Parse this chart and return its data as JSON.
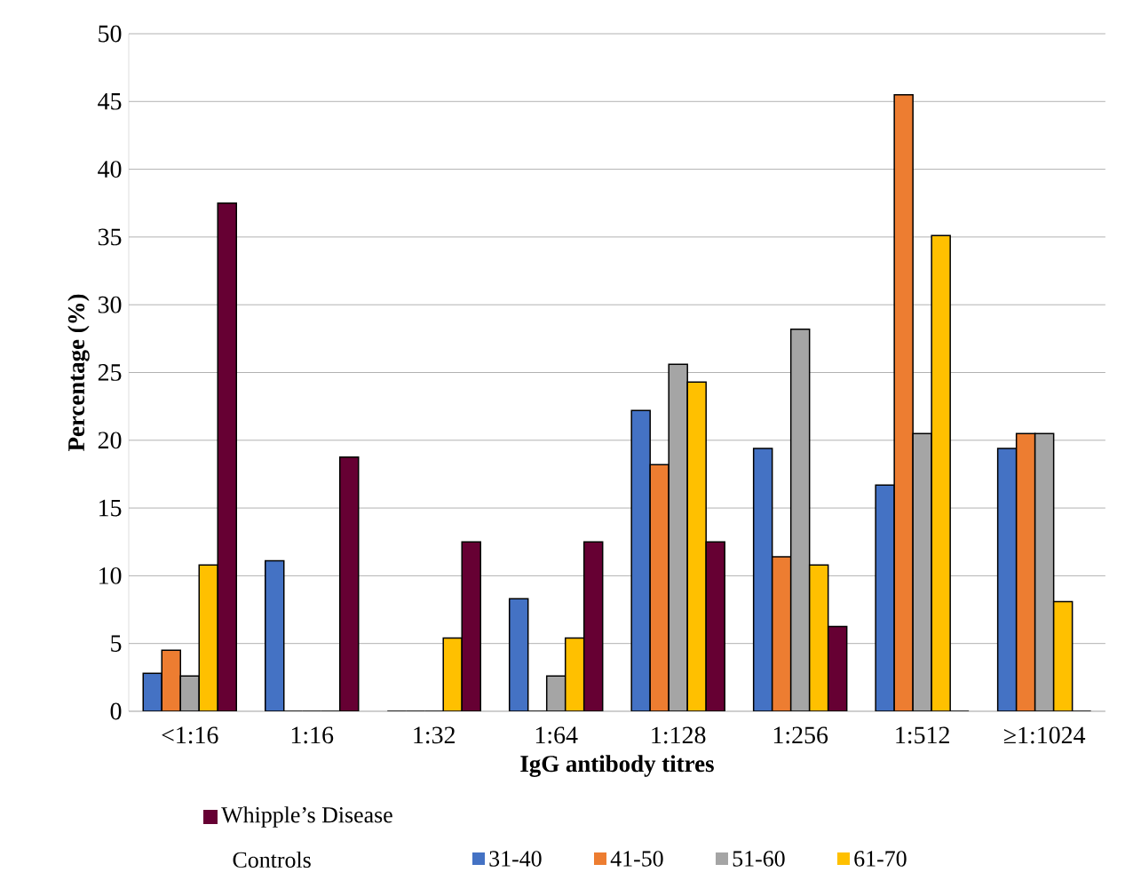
{
  "chart_data": {
    "type": "bar",
    "xlabel": "IgG antibody titres",
    "ylabel": "Percentage (%)",
    "categories": [
      "<1:16",
      "1:16",
      "1:32",
      "1:64",
      "1:128",
      "1:256",
      "1:512",
      "≥1:1024"
    ],
    "series": [
      {
        "name": "31-40",
        "color": "#4472c4",
        "values": [
          2.8,
          11.1,
          0,
          8.3,
          22.2,
          19.4,
          16.7,
          19.4
        ]
      },
      {
        "name": "41-50",
        "color": "#ed7d31",
        "values": [
          4.5,
          0,
          0,
          0,
          18.2,
          11.4,
          45.5,
          20.5
        ]
      },
      {
        "name": "51-60",
        "color": "#a5a5a5",
        "values": [
          2.6,
          0,
          0,
          2.6,
          25.6,
          28.2,
          20.5,
          20.5
        ]
      },
      {
        "name": "61-70",
        "color": "#ffc000",
        "values": [
          10.8,
          0,
          5.4,
          5.4,
          24.3,
          10.8,
          35.1,
          8.1
        ]
      },
      {
        "name": "Whipple’s Disease",
        "color": "#660033",
        "values": [
          37.5,
          18.75,
          12.5,
          12.5,
          12.5,
          6.25,
          0,
          0
        ]
      }
    ],
    "legend_title": "Controls",
    "ylim": [
      0,
      50
    ],
    "yticks": [
      0,
      5,
      10,
      15,
      20,
      25,
      30,
      35,
      40,
      45,
      50
    ],
    "grid": "y",
    "legend": "bottom"
  }
}
